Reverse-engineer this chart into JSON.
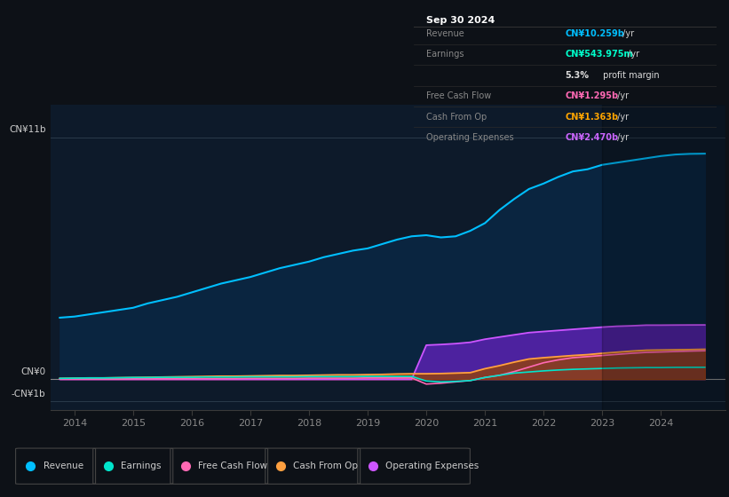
{
  "bg_color": "#0d1117",
  "plot_bg_color": "#0d1a2a",
  "title_box_rows": [
    {
      "label": "Revenue",
      "value": "CN¥10.259b /yr",
      "value_color": "#00bfff"
    },
    {
      "label": "Earnings",
      "value": "CN¥543.975m /yr",
      "value_color": "#00ffcc"
    },
    {
      "label": "",
      "value": "5.3% profit margin",
      "value_color": "#dddddd"
    },
    {
      "label": "Free Cash Flow",
      "value": "CN¥1.295b /yr",
      "value_color": "#ff69b4"
    },
    {
      "label": "Cash From Op",
      "value": "CN¥1.363b /yr",
      "value_color": "#ffa500"
    },
    {
      "label": "Operating Expenses",
      "value": "CN¥2.470b /yr",
      "value_color": "#cc66ff"
    }
  ],
  "xticks": [
    2014,
    2015,
    2016,
    2017,
    2018,
    2019,
    2020,
    2021,
    2022,
    2023,
    2024
  ],
  "years": [
    2013.75,
    2014.0,
    2014.25,
    2014.5,
    2014.75,
    2015.0,
    2015.25,
    2015.5,
    2015.75,
    2016.0,
    2016.25,
    2016.5,
    2016.75,
    2017.0,
    2017.25,
    2017.5,
    2017.75,
    2018.0,
    2018.25,
    2018.5,
    2018.75,
    2019.0,
    2019.25,
    2019.5,
    2019.75,
    2020.0,
    2020.25,
    2020.5,
    2020.75,
    2021.0,
    2021.25,
    2021.5,
    2021.75,
    2022.0,
    2022.25,
    2022.5,
    2022.75,
    2023.0,
    2023.25,
    2023.5,
    2023.75,
    2024.0,
    2024.25,
    2024.5,
    2024.75
  ],
  "revenue": [
    2.8,
    2.85,
    2.95,
    3.05,
    3.15,
    3.25,
    3.45,
    3.6,
    3.75,
    3.95,
    4.15,
    4.35,
    4.5,
    4.65,
    4.85,
    5.05,
    5.2,
    5.35,
    5.55,
    5.7,
    5.85,
    5.95,
    6.15,
    6.35,
    6.5,
    6.55,
    6.45,
    6.5,
    6.75,
    7.1,
    7.7,
    8.2,
    8.65,
    8.9,
    9.2,
    9.45,
    9.55,
    9.75,
    9.85,
    9.95,
    10.05,
    10.15,
    10.22,
    10.25,
    10.259
  ],
  "earnings": [
    0.04,
    0.05,
    0.06,
    0.06,
    0.07,
    0.08,
    0.08,
    0.09,
    0.09,
    0.09,
    0.1,
    0.1,
    0.1,
    0.11,
    0.11,
    0.11,
    0.11,
    0.12,
    0.12,
    0.12,
    0.12,
    0.13,
    0.13,
    0.13,
    0.13,
    -0.08,
    -0.12,
    -0.1,
    -0.06,
    0.08,
    0.18,
    0.28,
    0.33,
    0.38,
    0.42,
    0.45,
    0.47,
    0.49,
    0.51,
    0.52,
    0.53,
    0.53,
    0.54,
    0.542,
    0.544
  ],
  "free_cash_flow": [
    0.01,
    0.01,
    0.01,
    0.01,
    0.01,
    0.02,
    0.02,
    0.02,
    0.02,
    0.03,
    0.03,
    0.03,
    0.03,
    0.04,
    0.04,
    0.04,
    0.04,
    0.05,
    0.05,
    0.05,
    0.05,
    0.06,
    0.06,
    0.06,
    0.06,
    -0.22,
    -0.18,
    -0.12,
    -0.06,
    0.08,
    0.18,
    0.35,
    0.55,
    0.75,
    0.88,
    0.98,
    1.03,
    1.08,
    1.13,
    1.18,
    1.22,
    1.24,
    1.26,
    1.28,
    1.295
  ],
  "cash_from_op": [
    0.04,
    0.05,
    0.06,
    0.06,
    0.07,
    0.08,
    0.09,
    0.1,
    0.11,
    0.12,
    0.13,
    0.14,
    0.14,
    0.15,
    0.16,
    0.17,
    0.17,
    0.18,
    0.19,
    0.2,
    0.2,
    0.21,
    0.22,
    0.24,
    0.25,
    0.25,
    0.26,
    0.28,
    0.3,
    0.48,
    0.62,
    0.78,
    0.92,
    0.98,
    1.03,
    1.08,
    1.12,
    1.18,
    1.23,
    1.28,
    1.32,
    1.33,
    1.34,
    1.35,
    1.363
  ],
  "operating_expenses": [
    0.0,
    0.0,
    0.0,
    0.0,
    0.0,
    0.0,
    0.0,
    0.0,
    0.0,
    0.0,
    0.0,
    0.0,
    0.0,
    0.0,
    0.0,
    0.0,
    0.0,
    0.0,
    0.0,
    0.0,
    0.0,
    0.0,
    0.0,
    0.0,
    0.0,
    1.55,
    1.58,
    1.62,
    1.68,
    1.82,
    1.92,
    2.02,
    2.12,
    2.17,
    2.22,
    2.27,
    2.32,
    2.37,
    2.41,
    2.43,
    2.46,
    2.46,
    2.465,
    2.468,
    2.47
  ],
  "revenue_color": "#00bfff",
  "revenue_fill": "#0a2540",
  "earnings_color": "#00e5cc",
  "free_cash_flow_color": "#ff69b4",
  "cash_from_op_color": "#ffa040",
  "operating_expenses_color": "#cc55ff",
  "operating_expenses_fill": "#5522aa",
  "cash_from_op_fill": "#994400",
  "legend_items": [
    "Revenue",
    "Earnings",
    "Free Cash Flow",
    "Cash From Op",
    "Operating Expenses"
  ],
  "legend_colors": [
    "#00bfff",
    "#00e5cc",
    "#ff69b4",
    "#ffa040",
    "#cc55ff"
  ]
}
